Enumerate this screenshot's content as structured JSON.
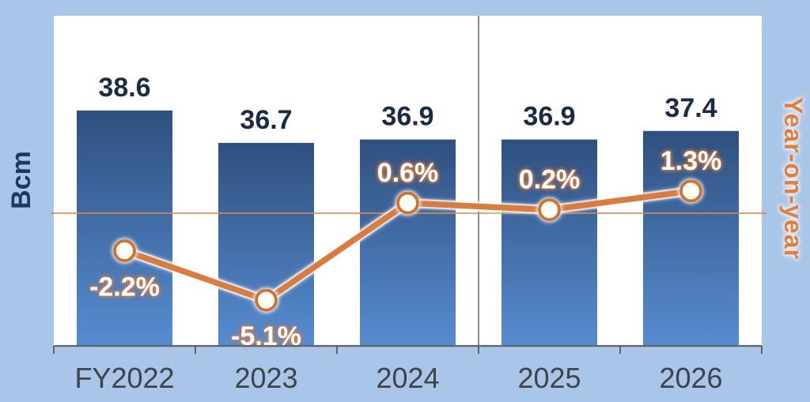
{
  "axes": {
    "left_label": "Bcm",
    "right_label": "Year-on-year"
  },
  "chart_data": {
    "type": "combo-bar-line",
    "title": "",
    "categories": [
      "FY2022",
      "2023",
      "2024",
      "2025",
      "2026"
    ],
    "series": [
      {
        "type": "bar",
        "axis": "left",
        "axis_label": "Bcm",
        "values": [
          38.6,
          36.7,
          36.9,
          36.9,
          37.4
        ],
        "data_labels": [
          "38.6",
          "36.7",
          "36.9",
          "36.9",
          "37.4"
        ]
      },
      {
        "type": "line",
        "axis": "right",
        "axis_label": "Year-on-year",
        "values_pct": [
          -2.2,
          -5.1,
          0.6,
          0.2,
          1.3
        ],
        "data_labels": [
          "-2.2%",
          "-5.1%",
          "0.6%",
          "0.2%",
          "1.3%"
        ],
        "label_positions": [
          "below",
          "below",
          "above",
          "above",
          "above"
        ]
      }
    ],
    "left_axis": {
      "label": "Bcm",
      "range": [
        24.8,
        44.15
      ],
      "tick_labels_visible": false
    },
    "right_axis": {
      "label": "Year-on-year",
      "range_pct": [
        -7.78,
        11.57
      ],
      "zero_line": true,
      "tick_labels_visible": false
    },
    "grid": false,
    "legend": false,
    "divider_after_category": "2024"
  },
  "colors": {
    "canvas_bg": "#a9c6e9",
    "plot_bg": "#ffffff",
    "bar_top": "#2f507f",
    "bar_bottom": "#578cd1",
    "bar_value_text": "#1b2b45",
    "line": "#d87c3f",
    "marker_fill": "#fffdfa",
    "marker_ring": "#d0722f",
    "pct_text": "#ffffff",
    "pct_glow": "#e07b3a",
    "zero_line": "#dc8950",
    "axis_line": "#5f6468",
    "divider": "#808080",
    "category_text": "#3f4449",
    "left_label_text": "#1f3860",
    "right_label_text": "#e07e3e"
  }
}
